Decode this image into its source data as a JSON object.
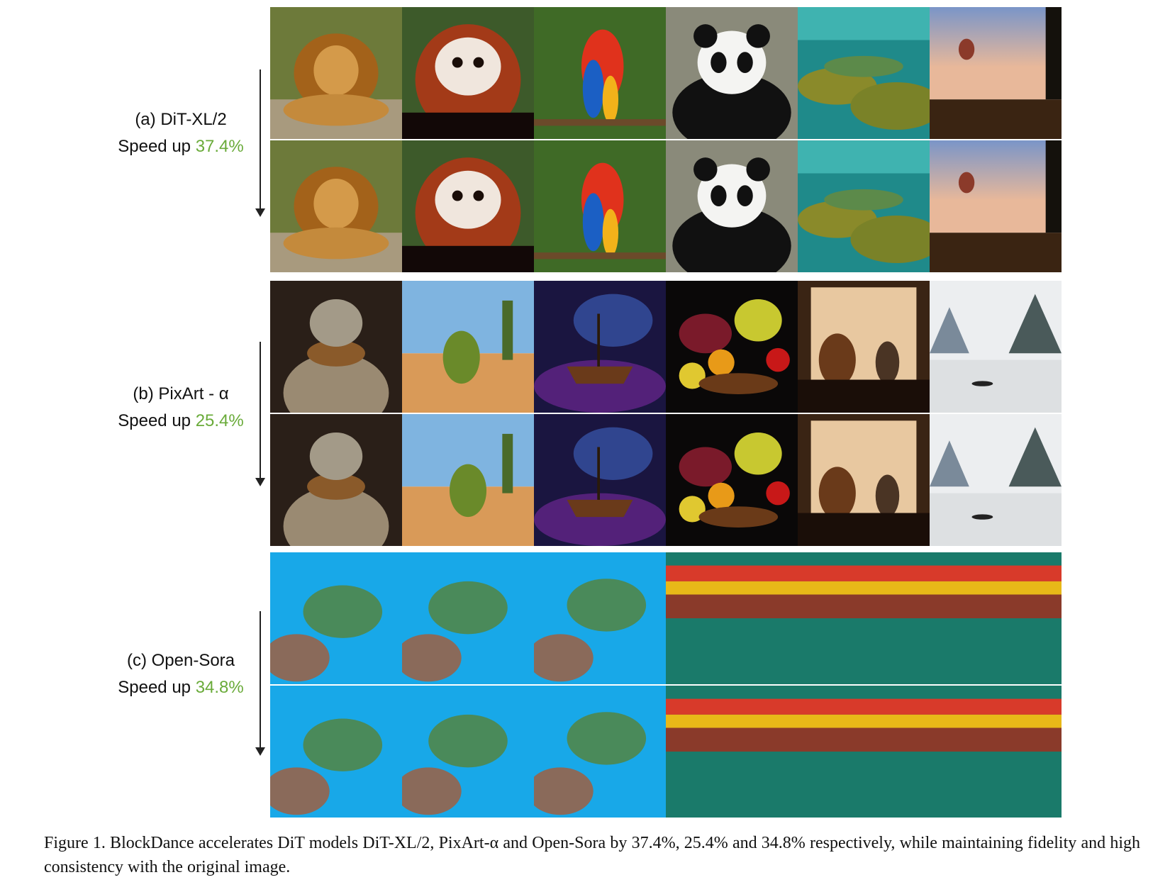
{
  "groups": [
    {
      "model": "(a) DiT-XL/2",
      "speed_prefix": "Speed up ",
      "speed": "37.4%"
    },
    {
      "model": "(b) PixArt - α",
      "speed_prefix": "Speed up ",
      "speed": "25.4%"
    },
    {
      "model": "(c) Open-Sora",
      "speed_prefix": "Speed up ",
      "speed": "34.8%"
    }
  ],
  "caption": "Figure 1.  BlockDance accelerates DiT models DiT-XL/2, PixArt-α and Open-Sora by 37.4%, 25.4% and 34.8% respectively, while maintaining fidelity and high consistency with the original image.",
  "images": {
    "dit": [
      "lion",
      "red-panda",
      "parrot",
      "panda",
      "coral-reef",
      "hot-air-balloon"
    ],
    "pixart": [
      "crocodile-in-sweater",
      "cactus",
      "ship-in-space",
      "fruit-bowl",
      "dog-and-cat-window",
      "ink-landscape"
    ],
    "opensora": [
      "sea-turtle",
      "sea-turtle",
      "sea-turtle",
      "cliffs",
      "cliffs",
      "cliffs"
    ]
  },
  "colors": {
    "speed_text": "#6aab3a"
  }
}
